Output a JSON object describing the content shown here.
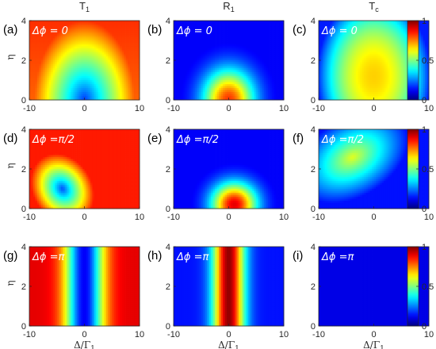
{
  "chart_data": [
    {
      "type": "heatmap",
      "panel_label": "(a)",
      "title": "T1",
      "annotation": "Δϕ  = 0",
      "ylabel": "η",
      "xlabel": "",
      "xlim": [
        -10,
        10
      ],
      "ylim": [
        0,
        4
      ],
      "xticks": [
        "-10",
        "0",
        "10"
      ],
      "yticks": [
        "0",
        "2",
        "4"
      ]
    },
    {
      "type": "heatmap",
      "panel_label": "(b)",
      "title": "R1",
      "annotation": "Δϕ  = 0",
      "ylabel": "",
      "xlabel": "",
      "xlim": [
        -10,
        10
      ],
      "ylim": [
        0,
        4
      ],
      "xticks": [
        "-10",
        "0",
        "10"
      ],
      "yticks": [
        "0",
        "2",
        "4"
      ]
    },
    {
      "type": "heatmap",
      "panel_label": "(c)",
      "title": "Tc",
      "annotation": "Δϕ  = 0",
      "ylabel": "",
      "xlabel": "",
      "xlim": [
        -10,
        10
      ],
      "ylim": [
        0,
        4
      ],
      "xticks": [
        "-10",
        "0",
        "10"
      ],
      "yticks": [
        "0",
        "2",
        "4"
      ],
      "colorbar": {
        "ticks": [
          "0",
          "0.5",
          "1"
        ],
        "range": [
          0,
          1
        ],
        "colormap": "jet"
      }
    },
    {
      "type": "heatmap",
      "panel_label": "(d)",
      "title": "",
      "annotation": "Δϕ  =π/2",
      "ylabel": "η",
      "xlabel": "",
      "xlim": [
        -10,
        10
      ],
      "ylim": [
        0,
        4
      ],
      "xticks": [
        "-10",
        "0",
        "10"
      ],
      "yticks": [
        "0",
        "2",
        "4"
      ]
    },
    {
      "type": "heatmap",
      "panel_label": "(e)",
      "title": "",
      "annotation": "Δϕ  =π/2",
      "ylabel": "",
      "xlabel": "",
      "xlim": [
        -10,
        10
      ],
      "ylim": [
        0,
        4
      ],
      "xticks": [
        "-10",
        "0",
        "10"
      ],
      "yticks": [
        "0",
        "2",
        "4"
      ]
    },
    {
      "type": "heatmap",
      "panel_label": "(f)",
      "title": "",
      "annotation": "Δϕ  =π/2",
      "ylabel": "",
      "xlabel": "",
      "xlim": [
        -10,
        10
      ],
      "ylim": [
        0,
        4
      ],
      "xticks": [
        "-10",
        "0",
        "10"
      ],
      "yticks": [
        "0",
        "2",
        "4"
      ],
      "colorbar": {
        "ticks": [
          "0",
          "0.5",
          "1"
        ],
        "range": [
          0,
          1
        ],
        "colormap": "jet"
      }
    },
    {
      "type": "heatmap",
      "panel_label": "(g)",
      "title": "",
      "annotation": "Δϕ  =π",
      "ylabel": "η",
      "xlabel": "Δ/Γ1",
      "xlim": [
        -10,
        10
      ],
      "ylim": [
        0,
        4
      ],
      "xticks": [
        "-10",
        "0",
        "10"
      ],
      "yticks": [
        "0",
        "2",
        "4"
      ]
    },
    {
      "type": "heatmap",
      "panel_label": "(h)",
      "title": "",
      "annotation": "Δϕ  =π",
      "ylabel": "",
      "xlabel": "Δ/Γ1",
      "xlim": [
        -10,
        10
      ],
      "ylim": [
        0,
        4
      ],
      "xticks": [
        "-10",
        "0",
        "10"
      ],
      "yticks": [
        "0",
        "2",
        "4"
      ]
    },
    {
      "type": "heatmap",
      "panel_label": "(i)",
      "title": "",
      "annotation": "Δϕ  =π",
      "ylabel": "",
      "xlabel": "Δ/Γ1",
      "xlim": [
        -10,
        10
      ],
      "ylim": [
        0,
        4
      ],
      "xticks": [
        "-10",
        "0",
        "10"
      ],
      "yticks": [
        "0",
        "2",
        "4"
      ],
      "colorbar": {
        "ticks": [
          "0",
          "0.5",
          "1"
        ],
        "range": [
          0,
          1
        ],
        "colormap": "jet"
      }
    }
  ]
}
